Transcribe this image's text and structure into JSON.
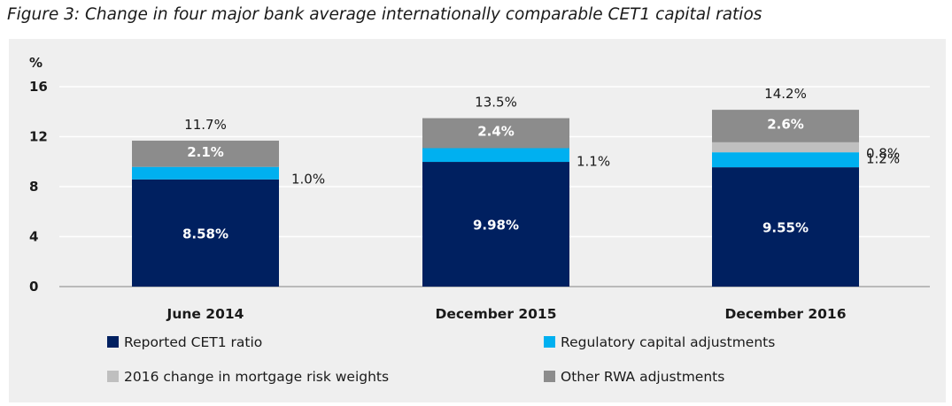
{
  "title": "Figure 3: Change in four major bank average internationally comparable CET1 capital ratios",
  "colors": {
    "reported": "#002060",
    "regulatory": "#00b0f0",
    "mortgage": "#bfbfbf",
    "other": "#8c8c8c",
    "background": "#efefef"
  },
  "chart_data": {
    "type": "bar",
    "stacked": true,
    "ylabel": "%",
    "ylim": [
      0,
      16
    ],
    "yticks": [
      "0",
      "4",
      "8",
      "12",
      "16"
    ],
    "grid": true,
    "legend_position": "bottom",
    "categories": [
      "June 2014",
      "December 2015",
      "December 2016"
    ],
    "totals": [
      "11.7%",
      "13.5%",
      "14.2%"
    ],
    "series": [
      {
        "name": "Reported CET1 ratio",
        "color_key": "reported",
        "values": [
          8.58,
          9.98,
          9.55
        ],
        "labels": [
          "8.58%",
          "9.98%",
          "9.55%"
        ],
        "label_placement": "inside"
      },
      {
        "name": "Regulatory capital adjustments",
        "color_key": "regulatory",
        "values": [
          1.0,
          1.1,
          1.2
        ],
        "labels": [
          "1.0%",
          "1.1%",
          "1.2%"
        ],
        "label_placement": "side"
      },
      {
        "name": "2016 change in mortgage risk weights",
        "color_key": "mortgage",
        "values": [
          0,
          0,
          0.8
        ],
        "labels": [
          "",
          "",
          "0.8%"
        ],
        "label_placement": "side"
      },
      {
        "name": "Other RWA adjustments",
        "color_key": "other",
        "values": [
          2.1,
          2.4,
          2.6
        ],
        "labels": [
          "2.1%",
          "2.4%",
          "2.6%"
        ],
        "label_placement": "inside"
      }
    ]
  }
}
